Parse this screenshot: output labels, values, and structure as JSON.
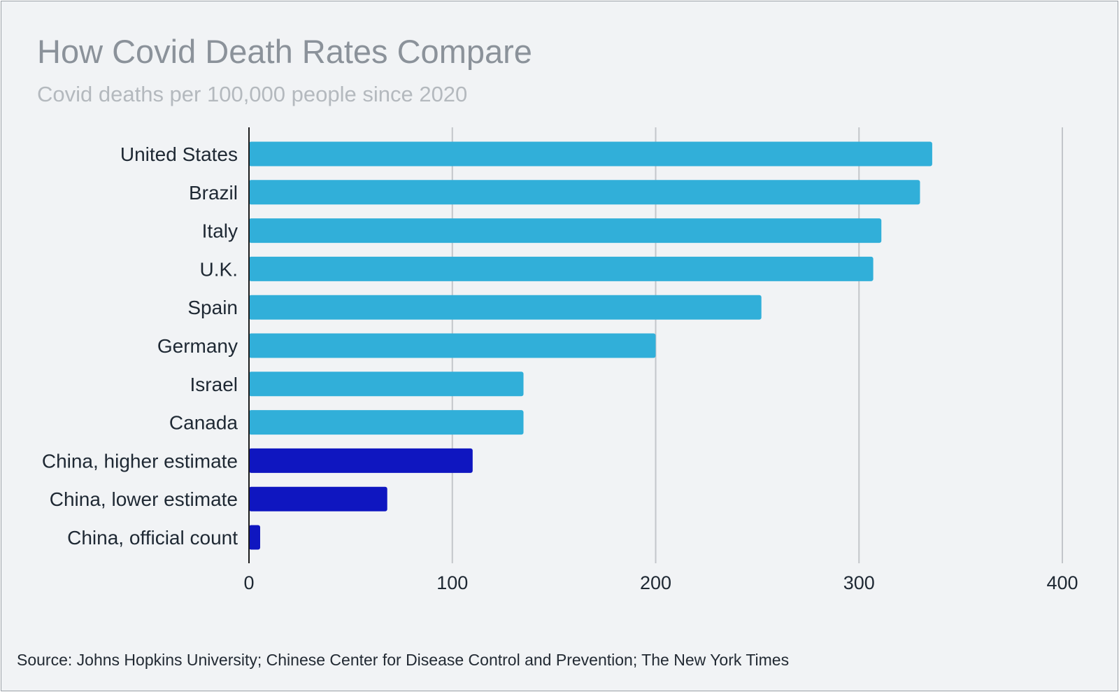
{
  "source": "Source: Johns Hopkins University; Chinese Center for Disease Control and Prevention; The New York Times",
  "colors": {
    "background": "#f1f3f5",
    "bar_primary": "#31afd9",
    "bar_china": "#0f16c0",
    "gridline": "#c3c6ca",
    "axis": "#1b1b1b"
  },
  "chart_data": {
    "type": "bar",
    "orientation": "horizontal",
    "title": "How Covid Death Rates Compare",
    "subtitle": "Covid deaths per 100,000 people since 2020",
    "xlabel": "",
    "ylabel": "",
    "xlim": [
      0,
      400
    ],
    "ticks": [
      0,
      100,
      200,
      300,
      400
    ],
    "grid": true,
    "legend": "none",
    "categories": [
      "United States",
      "Brazil",
      "Italy",
      "U.K.",
      "Spain",
      "Germany",
      "Israel",
      "Canada",
      "China, higher estimate",
      "China, lower estimate",
      "China, official count"
    ],
    "values": [
      336,
      330,
      311,
      307,
      252,
      200,
      135,
      135,
      110,
      68,
      5.5
    ],
    "highlight": [
      false,
      false,
      false,
      false,
      false,
      false,
      false,
      false,
      true,
      true,
      true
    ]
  }
}
